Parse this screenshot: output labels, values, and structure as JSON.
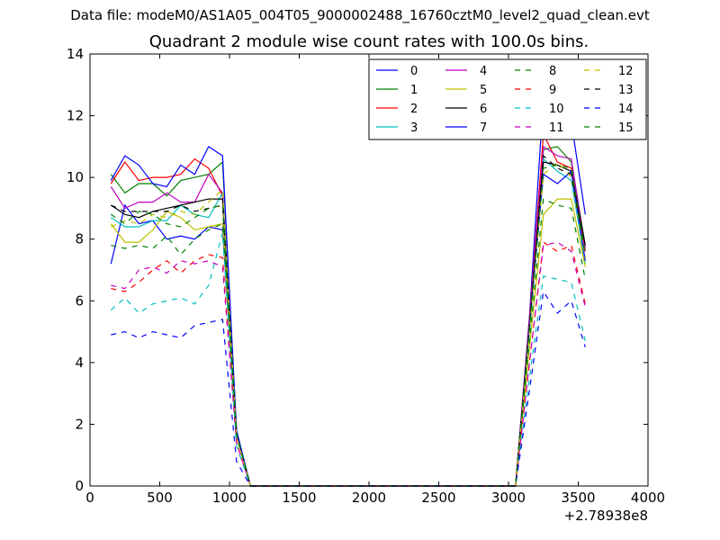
{
  "suptitle": "Data file: modeM0/AS1A05_004T05_9000002488_16760cztM0_level2_quad_clean.evt",
  "chart_data": {
    "type": "line",
    "title": "Quadrant 2 module wise count rates with 100.0s bins.",
    "xlabel": "",
    "ylabel": "",
    "x_offset_label": "+2.78938e8",
    "xlim": [
      0,
      4000
    ],
    "ylim": [
      0,
      14
    ],
    "xticks": [
      0,
      500,
      1000,
      1500,
      2000,
      2500,
      3000,
      3500,
      4000
    ],
    "yticks": [
      0,
      2,
      4,
      6,
      8,
      10,
      12,
      14
    ],
    "grid": false,
    "legend_position": "top-right",
    "legend_columns": 4,
    "x": [
      150,
      250,
      350,
      450,
      550,
      650,
      750,
      850,
      950,
      1050,
      1150,
      1250,
      1350,
      1450,
      1550,
      1650,
      1750,
      1850,
      1950,
      2050,
      2150,
      2250,
      2350,
      2450,
      2550,
      2650,
      2750,
      2850,
      2950,
      3050,
      3150,
      3250,
      3350,
      3450,
      3550
    ],
    "series": [
      {
        "name": "0",
        "color": "#0000ff",
        "dash": "solid",
        "values": [
          7.2,
          9.1,
          8.5,
          8.6,
          8.0,
          8.1,
          8.0,
          8.4,
          8.3,
          1.7,
          0,
          0,
          0,
          0,
          0,
          0,
          0,
          0,
          0,
          0,
          0,
          0,
          0,
          0,
          0,
          0,
          0,
          0,
          0,
          0,
          5.5,
          12.6,
          11.6,
          11.8,
          8.8
        ]
      },
      {
        "name": "1",
        "color": "#008000",
        "dash": "solid",
        "values": [
          10.1,
          9.5,
          9.8,
          9.8,
          9.4,
          9.9,
          10.0,
          10.1,
          10.5,
          1.8,
          0,
          0,
          0,
          0,
          0,
          0,
          0,
          0,
          0,
          0,
          0,
          0,
          0,
          0,
          0,
          0,
          0,
          0,
          0,
          0,
          5.3,
          10.9,
          11.0,
          10.5,
          7.8
        ]
      },
      {
        "name": "2",
        "color": "#ff0000",
        "dash": "solid",
        "values": [
          9.8,
          10.5,
          9.9,
          10.0,
          10.0,
          10.1,
          10.6,
          10.3,
          9.4,
          1.7,
          0,
          0,
          0,
          0,
          0,
          0,
          0,
          0,
          0,
          0,
          0,
          0,
          0,
          0,
          0,
          0,
          0,
          0,
          0,
          0,
          5.4,
          11.4,
          10.5,
          10.3,
          7.6
        ]
      },
      {
        "name": "3",
        "color": "#00bfbf",
        "dash": "solid",
        "values": [
          8.7,
          8.4,
          8.4,
          8.6,
          8.6,
          9.1,
          8.8,
          8.7,
          9.5,
          1.8,
          0,
          0,
          0,
          0,
          0,
          0,
          0,
          0,
          0,
          0,
          0,
          0,
          0,
          0,
          0,
          0,
          0,
          0,
          0,
          0,
          5.0,
          10.6,
          10.2,
          9.9,
          7.2
        ]
      },
      {
        "name": "4",
        "color": "#bf00bf",
        "dash": "solid",
        "values": [
          9.7,
          9.0,
          9.2,
          9.2,
          9.5,
          9.2,
          9.2,
          10.1,
          9.5,
          1.7,
          0,
          0,
          0,
          0,
          0,
          0,
          0,
          0,
          0,
          0,
          0,
          0,
          0,
          0,
          0,
          0,
          0,
          0,
          0,
          0,
          5.4,
          11.0,
          10.7,
          10.6,
          7.7
        ]
      },
      {
        "name": "5",
        "color": "#bfbf00",
        "dash": "solid",
        "values": [
          8.5,
          7.9,
          7.9,
          8.3,
          8.9,
          8.7,
          8.3,
          8.4,
          8.5,
          1.7,
          0,
          0,
          0,
          0,
          0,
          0,
          0,
          0,
          0,
          0,
          0,
          0,
          0,
          0,
          0,
          0,
          0,
          0,
          0,
          0,
          4.5,
          8.8,
          9.3,
          9.3,
          7.1
        ]
      },
      {
        "name": "6",
        "color": "#000000",
        "dash": "solid",
        "values": [
          9.1,
          8.8,
          8.7,
          8.9,
          9.0,
          9.1,
          9.2,
          9.3,
          9.3,
          1.7,
          0,
          0,
          0,
          0,
          0,
          0,
          0,
          0,
          0,
          0,
          0,
          0,
          0,
          0,
          0,
          0,
          0,
          0,
          0,
          0,
          5.2,
          10.5,
          10.4,
          10.2,
          7.8
        ]
      },
      {
        "name": "7",
        "color": "#0000ff",
        "dash": "solid",
        "values": [
          9.9,
          10.7,
          10.4,
          9.8,
          9.7,
          10.4,
          10.1,
          11.0,
          10.7,
          1.8,
          0,
          0,
          0,
          0,
          0,
          0,
          0,
          0,
          0,
          0,
          0,
          0,
          0,
          0,
          0,
          0,
          0,
          0,
          0,
          0,
          5.1,
          10.1,
          9.8,
          10.2,
          7.3
        ]
      },
      {
        "name": "8",
        "color": "#008000",
        "dash": "dashed",
        "values": [
          7.8,
          7.7,
          7.8,
          7.7,
          8.1,
          7.5,
          8.0,
          8.3,
          8.5,
          1.6,
          0,
          0,
          0,
          0,
          0,
          0,
          0,
          0,
          0,
          0,
          0,
          0,
          0,
          0,
          0,
          0,
          0,
          0,
          0,
          0,
          4.7,
          9.3,
          9.1,
          9.0,
          6.7
        ]
      },
      {
        "name": "9",
        "color": "#ff0000",
        "dash": "dashed",
        "values": [
          6.4,
          6.3,
          6.6,
          7.0,
          7.3,
          6.9,
          7.3,
          7.5,
          7.4,
          1.4,
          0,
          0,
          0,
          0,
          0,
          0,
          0,
          0,
          0,
          0,
          0,
          0,
          0,
          0,
          0,
          0,
          0,
          0,
          0,
          0,
          4.0,
          7.9,
          7.6,
          7.8,
          5.9
        ]
      },
      {
        "name": "10",
        "color": "#00bfbf",
        "dash": "dashed",
        "values": [
          5.7,
          6.1,
          5.6,
          5.9,
          6.0,
          6.1,
          5.9,
          6.5,
          8.2,
          1.3,
          0,
          0,
          0,
          0,
          0,
          0,
          0,
          0,
          0,
          0,
          0,
          0,
          0,
          0,
          0,
          0,
          0,
          0,
          0,
          0,
          3.5,
          6.8,
          6.7,
          6.6,
          4.7
        ]
      },
      {
        "name": "11",
        "color": "#bf00bf",
        "dash": "dashed",
        "values": [
          6.5,
          6.4,
          7.0,
          7.1,
          6.9,
          7.3,
          7.2,
          7.3,
          7.1,
          1.4,
          0,
          0,
          0,
          0,
          0,
          0,
          0,
          0,
          0,
          0,
          0,
          0,
          0,
          0,
          0,
          0,
          0,
          0,
          0,
          0,
          4.0,
          7.8,
          7.9,
          7.6,
          5.8
        ]
      },
      {
        "name": "12",
        "color": "#bfbf00",
        "dash": "dashed",
        "values": [
          8.4,
          8.6,
          8.5,
          8.8,
          8.7,
          8.9,
          8.8,
          9.2,
          9.6,
          1.6,
          0,
          0,
          0,
          0,
          0,
          0,
          0,
          0,
          0,
          0,
          0,
          0,
          0,
          0,
          0,
          0,
          0,
          0,
          0,
          0,
          5.0,
          10.1,
          10.5,
          10.0,
          7.4
        ]
      },
      {
        "name": "13",
        "color": "#000000",
        "dash": "dashed",
        "values": [
          9.1,
          8.9,
          8.9,
          8.9,
          8.9,
          9.1,
          8.9,
          9.0,
          9.1,
          1.7,
          0,
          0,
          0,
          0,
          0,
          0,
          0,
          0,
          0,
          0,
          0,
          0,
          0,
          0,
          0,
          0,
          0,
          0,
          0,
          0,
          5.2,
          10.7,
          10.3,
          10.1,
          7.5
        ]
      },
      {
        "name": "14",
        "color": "#0000ff",
        "dash": "dashed",
        "values": [
          4.9,
          5.0,
          4.8,
          5.0,
          4.9,
          4.8,
          5.2,
          5.3,
          5.4,
          0.8,
          0,
          0,
          0,
          0,
          0,
          0,
          0,
          0,
          0,
          0,
          0,
          0,
          0,
          0,
          0,
          0,
          0,
          0,
          0,
          0,
          3.1,
          6.3,
          5.6,
          6.0,
          4.5
        ]
      },
      {
        "name": "15",
        "color": "#008000",
        "dash": "dashed",
        "values": [
          8.8,
          8.5,
          8.9,
          8.8,
          8.5,
          8.4,
          8.7,
          9.0,
          9.1,
          1.7,
          0,
          0,
          0,
          0,
          0,
          0,
          0,
          0,
          0,
          0,
          0,
          0,
          0,
          0,
          0,
          0,
          0,
          0,
          0,
          0,
          5.1,
          10.3,
          10.4,
          10.3,
          7.5
        ]
      }
    ]
  }
}
